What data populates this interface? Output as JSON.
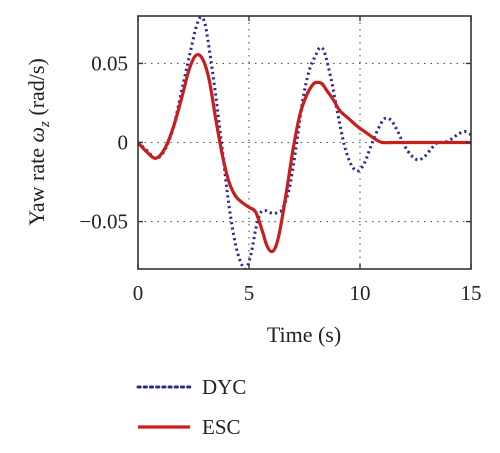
{
  "chart_data": {
    "type": "line",
    "xlabel": "Time (s)",
    "ylabel_text": "Yaw rate ",
    "ylabel_symbol": "ω",
    "ylabel_subscript": "z",
    "ylabel_unit": " (rad/s)",
    "xlim": [
      0,
      15
    ],
    "ylim": [
      -0.08,
      0.08
    ],
    "x_ticks": [
      0,
      5,
      10,
      15
    ],
    "x_tick_labels": [
      "0",
      "5",
      "10",
      "15"
    ],
    "y_ticks": [
      0.05,
      0,
      -0.05
    ],
    "y_tick_labels": [
      "0.05",
      "0",
      "−0.05"
    ],
    "grid": true,
    "legend_position": "bottom-left, below plot",
    "series": [
      {
        "name": "DYC",
        "style": "dotted",
        "color": "#2b2b8f",
        "x": [
          0,
          0.4,
          0.8,
          1.2,
          1.6,
          2.0,
          2.4,
          2.6,
          2.8,
          3.0,
          3.2,
          3.5,
          3.8,
          4.1,
          4.4,
          4.7,
          4.9,
          5.1,
          5.3,
          5.5,
          5.7,
          5.9,
          6.1,
          6.3,
          6.5,
          6.8,
          7.1,
          7.4,
          7.7,
          8.0,
          8.2,
          8.4,
          8.7,
          9.0,
          9.3,
          9.6,
          9.9,
          10.2,
          10.5,
          10.8,
          11.1,
          11.4,
          11.7,
          12.0,
          12.3,
          12.6,
          12.9,
          13.2,
          13.5,
          13.8,
          14.1,
          14.4,
          14.7,
          15.0
        ],
        "y": [
          0.0,
          -0.005,
          -0.01,
          -0.005,
          0.01,
          0.035,
          0.06,
          0.072,
          0.079,
          0.076,
          0.06,
          0.03,
          -0.005,
          -0.04,
          -0.065,
          -0.078,
          -0.079,
          -0.07,
          -0.055,
          -0.045,
          -0.043,
          -0.044,
          -0.045,
          -0.044,
          -0.042,
          -0.03,
          -0.005,
          0.025,
          0.045,
          0.055,
          0.06,
          0.057,
          0.04,
          0.018,
          -0.002,
          -0.014,
          -0.018,
          -0.013,
          -0.002,
          0.008,
          0.015,
          0.014,
          0.007,
          -0.002,
          -0.008,
          -0.011,
          -0.009,
          -0.004,
          0.0,
          0.0,
          0.002,
          0.005,
          0.007,
          0.005
        ]
      },
      {
        "name": "ESC",
        "style": "solid",
        "color": "#c81e1e",
        "x": [
          0,
          0.4,
          0.8,
          1.2,
          1.6,
          2.0,
          2.3,
          2.6,
          2.9,
          3.2,
          3.5,
          3.8,
          4.1,
          4.4,
          4.7,
          5.0,
          5.3,
          5.6,
          5.8,
          6.0,
          6.2,
          6.4,
          6.7,
          7.0,
          7.3,
          7.6,
          7.9,
          8.1,
          8.3,
          8.5,
          8.8,
          9.1,
          9.5,
          9.9,
          10.3,
          10.7,
          11.0,
          11.5,
          12.0,
          12.5,
          13.0,
          13.5,
          14.0,
          14.5,
          15.0
        ],
        "y": [
          0.0,
          -0.006,
          -0.01,
          -0.004,
          0.01,
          0.03,
          0.046,
          0.055,
          0.053,
          0.04,
          0.015,
          -0.008,
          -0.025,
          -0.034,
          -0.038,
          -0.041,
          -0.044,
          -0.056,
          -0.065,
          -0.069,
          -0.066,
          -0.055,
          -0.03,
          -0.003,
          0.018,
          0.03,
          0.037,
          0.038,
          0.037,
          0.033,
          0.027,
          0.02,
          0.015,
          0.01,
          0.006,
          0.002,
          0.0,
          0.0,
          0.0,
          0.0,
          0.0,
          0.0,
          0.0,
          0.0,
          0.0
        ]
      }
    ]
  }
}
